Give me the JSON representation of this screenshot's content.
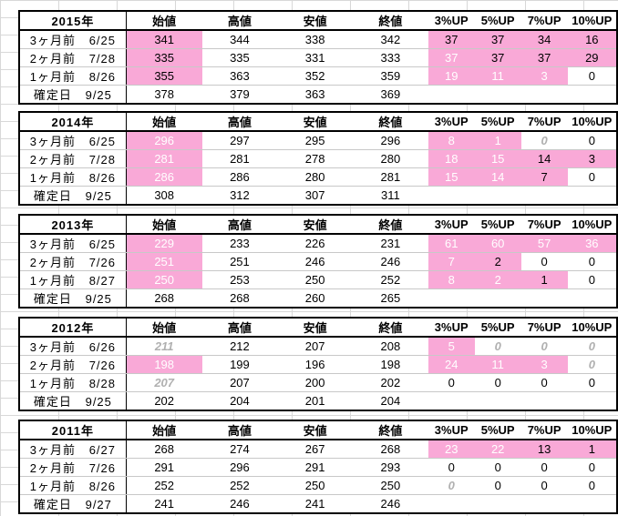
{
  "headers": {
    "prices": [
      "始値",
      "高値",
      "安値",
      "終値"
    ],
    "ups": [
      "3%UP",
      "5%UP",
      "7%UP",
      "10%UP"
    ]
  },
  "blocks": [
    {
      "year": "2015年",
      "rows": [
        {
          "label": "3ヶ月前",
          "date": "6/25",
          "prices": [
            "341",
            "344",
            "338",
            "342"
          ],
          "ups": [
            "37",
            "37",
            "34",
            "16"
          ]
        },
        {
          "label": "2ヶ月前",
          "date": "7/28",
          "prices": [
            "335",
            "335",
            "331",
            "333"
          ],
          "ups": [
            "37",
            "37",
            "37",
            "29"
          ]
        },
        {
          "label": "1ヶ月前",
          "date": "8/26",
          "prices": [
            "355",
            "363",
            "352",
            "359"
          ],
          "ups": [
            "19",
            "11",
            "3",
            "0"
          ]
        },
        {
          "label": "確定日",
          "date": "9/25",
          "prices": [
            "378",
            "379",
            "363",
            "369"
          ],
          "ups": [
            "",
            "",
            "",
            ""
          ]
        }
      ]
    },
    {
      "year": "2014年",
      "rows": [
        {
          "label": "3ヶ月前",
          "date": "6/25",
          "prices": [
            "296",
            "297",
            "295",
            "296"
          ],
          "ups": [
            "8",
            "1",
            "0",
            "0"
          ]
        },
        {
          "label": "2ヶ月前",
          "date": "7/28",
          "prices": [
            "281",
            "281",
            "278",
            "280"
          ],
          "ups": [
            "18",
            "15",
            "14",
            "3"
          ]
        },
        {
          "label": "1ヶ月前",
          "date": "8/26",
          "prices": [
            "286",
            "286",
            "280",
            "281"
          ],
          "ups": [
            "15",
            "14",
            "7",
            "0"
          ]
        },
        {
          "label": "確定日",
          "date": "9/25",
          "prices": [
            "308",
            "312",
            "307",
            "311"
          ],
          "ups": [
            "",
            "",
            "",
            ""
          ]
        }
      ]
    },
    {
      "year": "2013年",
      "rows": [
        {
          "label": "3ヶ月前",
          "date": "6/25",
          "prices": [
            "229",
            "233",
            "226",
            "231"
          ],
          "ups": [
            "61",
            "60",
            "57",
            "36"
          ]
        },
        {
          "label": "2ヶ月前",
          "date": "7/26",
          "prices": [
            "251",
            "251",
            "246",
            "246"
          ],
          "ups": [
            "7",
            "2",
            "0",
            "0"
          ]
        },
        {
          "label": "1ヶ月前",
          "date": "8/27",
          "prices": [
            "250",
            "253",
            "250",
            "252"
          ],
          "ups": [
            "8",
            "2",
            "1",
            "0"
          ]
        },
        {
          "label": "確定日",
          "date": "9/25",
          "prices": [
            "268",
            "268",
            "260",
            "265"
          ],
          "ups": [
            "",
            "",
            "",
            ""
          ]
        }
      ]
    },
    {
      "year": "2012年",
      "rows": [
        {
          "label": "3ヶ月前",
          "date": "6/26",
          "prices": [
            "211",
            "212",
            "207",
            "208"
          ],
          "ups": [
            "5",
            "0",
            "0",
            "0"
          ]
        },
        {
          "label": "2ヶ月前",
          "date": "7/26",
          "prices": [
            "198",
            "199",
            "196",
            "198"
          ],
          "ups": [
            "24",
            "11",
            "3",
            "0"
          ]
        },
        {
          "label": "1ヶ月前",
          "date": "8/28",
          "prices": [
            "207",
            "207",
            "200",
            "202"
          ],
          "ups": [
            "0",
            "0",
            "0",
            "0"
          ]
        },
        {
          "label": "確定日",
          "date": "9/25",
          "prices": [
            "202",
            "204",
            "201",
            "204"
          ],
          "ups": [
            "",
            "",
            "",
            ""
          ]
        }
      ]
    },
    {
      "year": "2011年",
      "rows": [
        {
          "label": "3ヶ月前",
          "date": "6/27",
          "prices": [
            "268",
            "274",
            "267",
            "268"
          ],
          "ups": [
            "23",
            "22",
            "13",
            "1"
          ]
        },
        {
          "label": "2ヶ月前",
          "date": "7/26",
          "prices": [
            "291",
            "296",
            "291",
            "293"
          ],
          "ups": [
            "0",
            "0",
            "0",
            "0"
          ]
        },
        {
          "label": "1ヶ月前",
          "date": "8/26",
          "prices": [
            "252",
            "252",
            "250",
            "250"
          ],
          "ups": [
            "0",
            "0",
            "0",
            "0"
          ]
        },
        {
          "label": "確定日",
          "date": "9/27",
          "prices": [
            "241",
            "246",
            "241",
            "246"
          ],
          "ups": [
            "",
            "",
            "",
            ""
          ]
        }
      ]
    }
  ]
}
